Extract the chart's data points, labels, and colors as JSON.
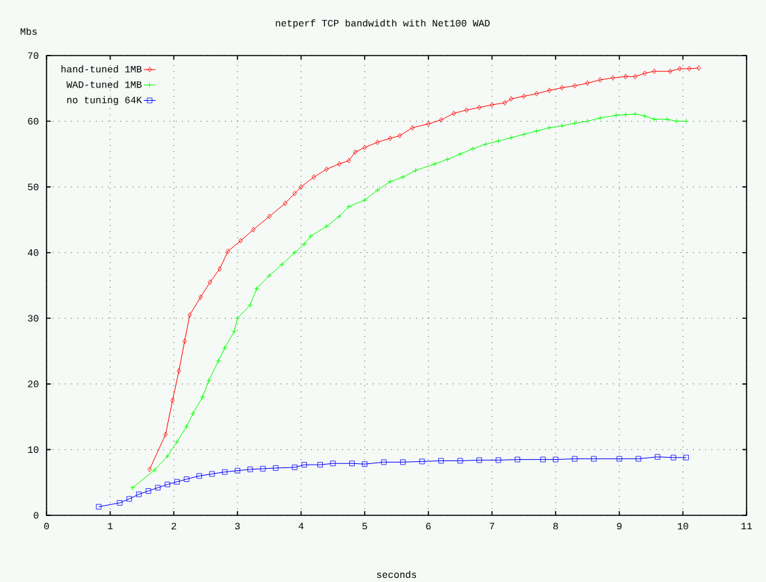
{
  "chart_data": {
    "type": "line",
    "title": "netperf TCP bandwidth with Net100 WAD",
    "xlabel": "seconds",
    "ylabel": "Mbs",
    "xlim": [
      0,
      11
    ],
    "ylim": [
      0,
      70
    ],
    "xticks": [
      0,
      1,
      2,
      3,
      4,
      5,
      6,
      7,
      8,
      9,
      10,
      11
    ],
    "yticks": [
      0,
      10,
      20,
      30,
      40,
      50,
      60,
      70
    ],
    "grid": true,
    "legend": "top left",
    "line_style": "solid",
    "series": [
      {
        "name": "hand-tuned 1MB",
        "color": "#ff0000",
        "marker": "diamond",
        "x": [
          1.62,
          1.87,
          1.98,
          2.08,
          2.17,
          2.25,
          2.42,
          2.57,
          2.72,
          2.85,
          3.05,
          3.25,
          3.5,
          3.75,
          3.9,
          4.0,
          4.2,
          4.4,
          4.6,
          4.75,
          4.85,
          5.0,
          5.2,
          5.4,
          5.55,
          5.75,
          6.0,
          6.2,
          6.4,
          6.6,
          6.8,
          7.0,
          7.2,
          7.3,
          7.5,
          7.7,
          7.9,
          8.1,
          8.3,
          8.5,
          8.7,
          8.9,
          9.1,
          9.25,
          9.4,
          9.55,
          9.8,
          9.95,
          10.1,
          10.25
        ],
        "values": [
          7,
          12.3,
          17.5,
          22,
          26.5,
          30.5,
          33.2,
          35.5,
          37.5,
          40.2,
          41.8,
          43.5,
          45.5,
          47.5,
          49,
          50,
          51.5,
          52.7,
          53.5,
          54,
          55.3,
          56,
          56.8,
          57.4,
          57.8,
          59,
          59.6,
          60.2,
          61.2,
          61.7,
          62.1,
          62.5,
          62.8,
          63.4,
          63.8,
          64.2,
          64.7,
          65.1,
          65.4,
          65.8,
          66.3,
          66.6,
          66.8,
          66.8,
          67.3,
          67.6,
          67.6,
          68,
          68,
          68.1
        ]
      },
      {
        "name": "WAD-tuned 1MB",
        "color": "#00ff00",
        "marker": "cross",
        "x": [
          1.35,
          1.7,
          1.9,
          2.05,
          2.2,
          2.3,
          2.45,
          2.55,
          2.7,
          2.8,
          2.95,
          3.0,
          3.2,
          3.3,
          3.5,
          3.7,
          3.9,
          4.05,
          4.15,
          4.4,
          4.6,
          4.75,
          5.0,
          5.2,
          5.4,
          5.6,
          5.8,
          6.1,
          6.3,
          6.5,
          6.7,
          6.9,
          7.1,
          7.3,
          7.5,
          7.7,
          7.9,
          8.1,
          8.3,
          8.5,
          8.7,
          8.95,
          9.1,
          9.25,
          9.4,
          9.55,
          9.75,
          9.9,
          10.05
        ],
        "values": [
          4.2,
          6.9,
          9,
          11.2,
          13.5,
          15.5,
          18,
          20.5,
          23.5,
          25.5,
          28,
          30,
          32,
          34.5,
          36.5,
          38.2,
          40,
          41.3,
          42.5,
          44,
          45.5,
          47,
          48,
          49.5,
          50.8,
          51.5,
          52.5,
          53.5,
          54.2,
          55,
          55.8,
          56.5,
          57,
          57.5,
          58,
          58.5,
          59,
          59.3,
          59.7,
          60,
          60.5,
          60.9,
          61,
          61.1,
          60.8,
          60.3,
          60.3,
          60,
          60
        ]
      },
      {
        "name": "no tuning 64K",
        "color": "#0000ff",
        "marker": "square",
        "x": [
          0.82,
          1.15,
          1.3,
          1.45,
          1.6,
          1.75,
          1.9,
          2.05,
          2.2,
          2.4,
          2.6,
          2.8,
          3.0,
          3.2,
          3.4,
          3.6,
          3.9,
          4.05,
          4.3,
          4.5,
          4.8,
          5.0,
          5.3,
          5.6,
          5.9,
          6.2,
          6.5,
          6.8,
          7.1,
          7.4,
          7.8,
          8.0,
          8.3,
          8.6,
          9.0,
          9.3,
          9.6,
          9.85,
          10.05
        ],
        "values": [
          1.3,
          1.9,
          2.5,
          3.2,
          3.7,
          4.2,
          4.7,
          5.1,
          5.5,
          6,
          6.3,
          6.6,
          6.8,
          7,
          7.1,
          7.2,
          7.3,
          7.7,
          7.7,
          7.9,
          7.9,
          7.8,
          8.1,
          8.1,
          8.2,
          8.3,
          8.3,
          8.4,
          8.4,
          8.5,
          8.5,
          8.5,
          8.6,
          8.6,
          8.6,
          8.6,
          8.9,
          8.8,
          8.8
        ]
      }
    ]
  }
}
